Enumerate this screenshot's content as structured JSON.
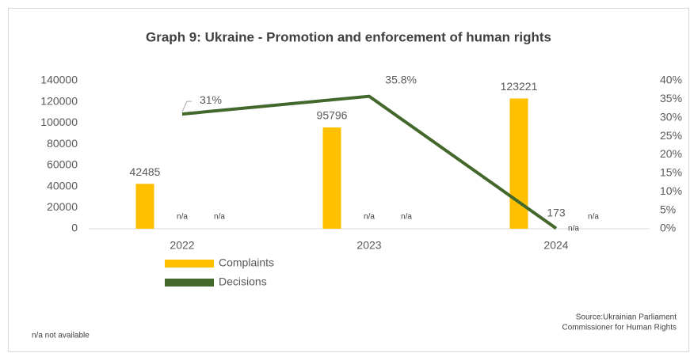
{
  "chart_data": {
    "type": "bar_line",
    "title": "Graph 9: Ukraine - Promotion and enforcement of human rights",
    "categories": [
      "2022",
      "2023",
      "2024"
    ],
    "series": [
      {
        "name": "Complaints",
        "color": "#ffc000",
        "values": [
          42485,
          95796,
          123221
        ]
      },
      {
        "name": "Decisions",
        "color": "#43682b",
        "axis": "y2",
        "values": [
          31,
          35.8,
          0.1
        ],
        "value_labels": [
          "31%",
          "35.8%",
          null
        ]
      }
    ],
    "ylim": [
      0,
      140000
    ],
    "yticks": [
      0,
      20000,
      40000,
      60000,
      80000,
      100000,
      120000,
      140000
    ],
    "y2lim": [
      0,
      40
    ],
    "y2ticks": [
      {
        "value": 0,
        "label": "0%"
      },
      {
        "value": 5,
        "label": "5%"
      },
      {
        "value": 10,
        "label": "10%"
      },
      {
        "value": 15,
        "label": "15%"
      },
      {
        "value": 20,
        "label": "20%"
      },
      {
        "value": 25,
        "label": "25%"
      },
      {
        "value": 30,
        "label": "30%"
      },
      {
        "value": 35,
        "label": "35%"
      },
      {
        "value": 40,
        "label": "40%"
      }
    ],
    "annotation": "173",
    "na_labels": [
      [
        "n/a",
        "n/a"
      ],
      [
        "n/a",
        "n/a"
      ],
      [
        "n/a",
        "n/a"
      ]
    ],
    "footnote": "n/a not available",
    "source": [
      "Source:Ukrainian Parliament",
      "Commissioner for Human Rights"
    ],
    "legend": "bottom-left",
    "grid": false
  }
}
